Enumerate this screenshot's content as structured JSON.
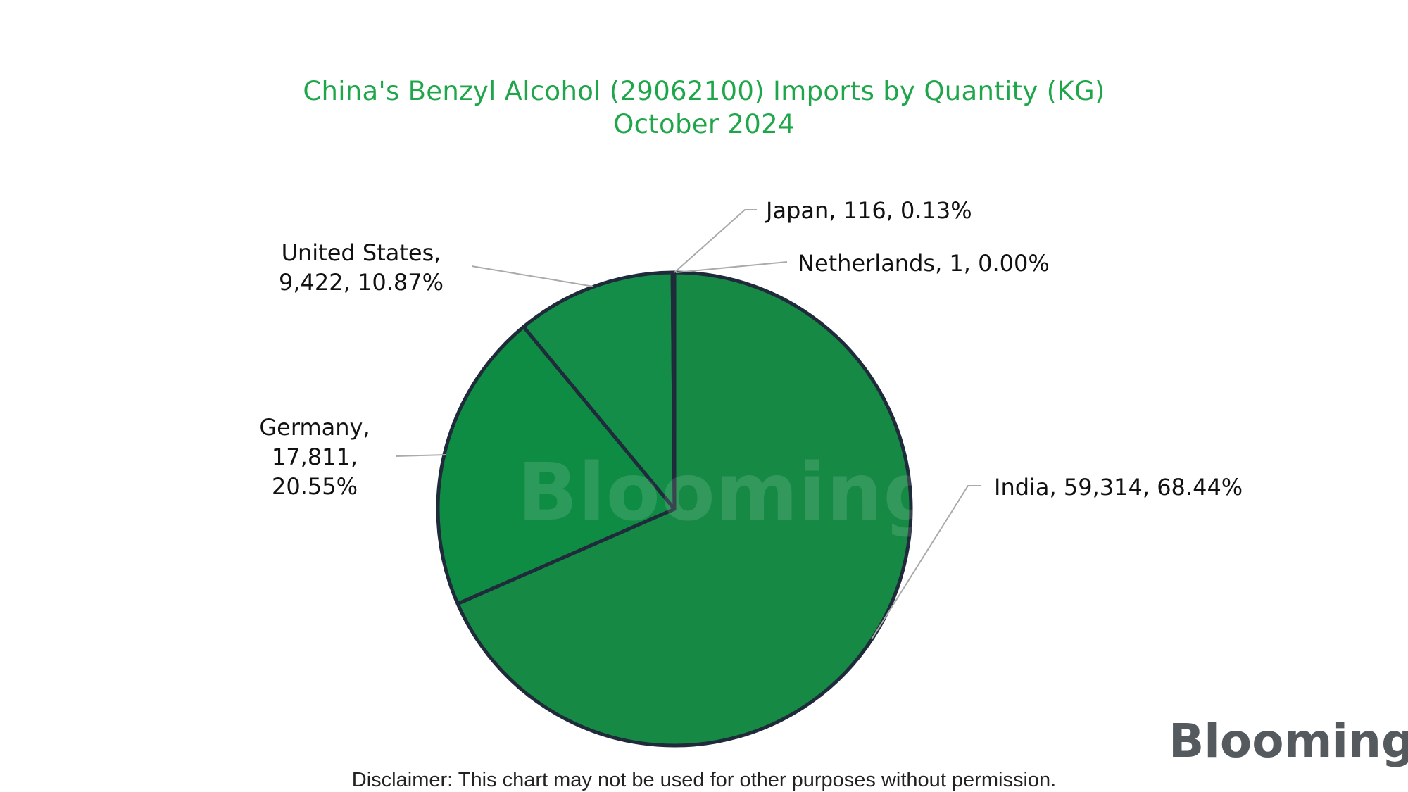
{
  "chart_data": {
    "type": "pie",
    "title_line1": "China's Benzyl Alcohol (29062100) Imports by Quantity (KG)",
    "title_line2": "October 2024",
    "slices": [
      {
        "label": "India",
        "value": 59314,
        "percent": 68.44,
        "display": "India, 59,314, 68.44%",
        "color": "#168a45"
      },
      {
        "label": "Germany",
        "value": 17811,
        "percent": 20.55,
        "display_lines": [
          "Germany,",
          "17,811,",
          "20.55%"
        ],
        "color": "#0f8c44"
      },
      {
        "label": "United States",
        "value": 9422,
        "percent": 10.87,
        "display_lines": [
          "United States,",
          "9,422, 10.87%"
        ],
        "color": "#138d48"
      },
      {
        "label": "Japan",
        "value": 116,
        "percent": 0.13,
        "display": "Japan, 116, 0.13%",
        "color": "#1b8f4b"
      },
      {
        "label": "Netherlands",
        "value": 1,
        "percent": 0.0,
        "display": "Netherlands, 1, 0.00%",
        "color": "#1b8f4b"
      }
    ],
    "slice_outline_color": "#1f2b3a",
    "leader_color": "#aaaaaa",
    "legend": "none"
  },
  "branding": {
    "watermark": "Blooming",
    "logo": "Blooming"
  },
  "disclaimer": "Disclaimer: This chart may not be used for other purposes without permission.",
  "colors": {
    "title": "#1fa64a",
    "logo": "#555a5e"
  }
}
